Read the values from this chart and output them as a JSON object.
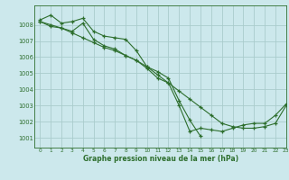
{
  "title": "Graphe pression niveau de la mer (hPa)",
  "bg_color": "#cce8ec",
  "grid_color": "#aacccc",
  "line_color": "#2d6e2d",
  "marker_color": "#2d6e2d",
  "xlim": [
    -0.5,
    23
  ],
  "ylim": [
    1000.4,
    1009.2
  ],
  "yticks": [
    1001,
    1002,
    1003,
    1004,
    1005,
    1006,
    1007,
    1008
  ],
  "xticks": [
    0,
    1,
    2,
    3,
    4,
    5,
    6,
    7,
    8,
    9,
    10,
    11,
    12,
    13,
    14,
    15,
    16,
    17,
    18,
    19,
    20,
    21,
    22,
    23
  ],
  "series": [
    [
      1008.3,
      1008.6,
      1008.1,
      1008.2,
      1008.4,
      1007.6,
      1007.3,
      1007.2,
      1007.1,
      1006.4,
      1005.4,
      1005.1,
      1004.7,
      1003.3,
      1002.1,
      1001.1,
      null,
      null,
      null,
      null,
      null,
      null,
      null,
      null
    ],
    [
      1008.2,
      1008.0,
      1007.8,
      1007.6,
      1008.1,
      1007.1,
      1006.7,
      1006.5,
      1006.1,
      1005.8,
      1005.3,
      1004.7,
      1004.4,
      1003.0,
      1001.4,
      1001.6,
      1001.5,
      1001.4,
      1001.6,
      1001.8,
      1001.9,
      1001.9,
      1002.4,
      1003.1
    ],
    [
      1008.2,
      1007.9,
      1007.8,
      1007.5,
      1007.2,
      1006.9,
      1006.6,
      1006.4,
      1006.1,
      1005.8,
      1005.4,
      1004.9,
      1004.4,
      1003.9,
      1003.4,
      1002.9,
      1002.4,
      1001.9,
      1001.7,
      1001.6,
      1001.6,
      1001.7,
      1001.9,
      1003.0
    ]
  ]
}
